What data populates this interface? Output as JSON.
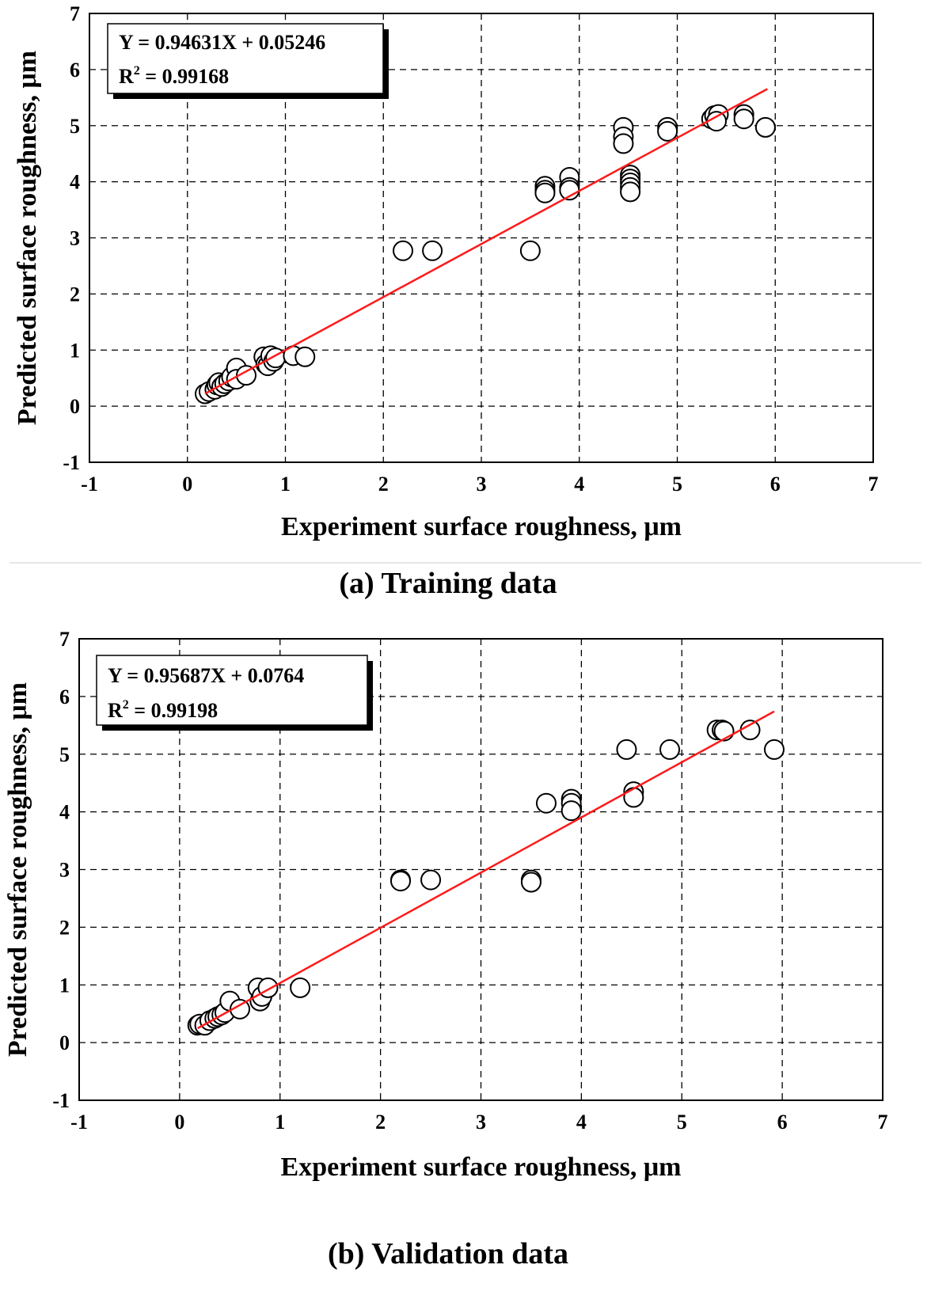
{
  "chart_data": [
    {
      "type": "scatter",
      "caption": "(a) Training data",
      "xlabel": "Experiment surface roughness, μm",
      "ylabel": "Predicted surface roughness, μm",
      "xlim": [
        -1,
        7
      ],
      "ylim": [
        -1,
        7
      ],
      "xticks": [
        "-1",
        "0",
        "1",
        "2",
        "3",
        "4",
        "5",
        "6",
        "7"
      ],
      "yticks": [
        "-1",
        "0",
        "1",
        "2",
        "3",
        "4",
        "5",
        "6",
        "7"
      ],
      "grid": true,
      "equation": "Y =  0.94631X + 0.05246",
      "r2_label": "R",
      "r2_sup": "2",
      "r2_value": " = 0.99168",
      "fit": {
        "slope": 0.94631,
        "intercept": 0.05246,
        "x_range": [
          0.18,
          5.92
        ],
        "color": "#ff1a1a"
      },
      "points": [
        [
          0.18,
          0.22
        ],
        [
          0.22,
          0.26
        ],
        [
          0.28,
          0.3
        ],
        [
          0.3,
          0.38
        ],
        [
          0.32,
          0.42
        ],
        [
          0.35,
          0.35
        ],
        [
          0.38,
          0.4
        ],
        [
          0.42,
          0.45
        ],
        [
          0.45,
          0.52
        ],
        [
          0.5,
          0.68
        ],
        [
          0.5,
          0.48
        ],
        [
          0.6,
          0.55
        ],
        [
          0.78,
          0.88
        ],
        [
          0.8,
          0.75
        ],
        [
          0.82,
          0.72
        ],
        [
          0.85,
          0.9
        ],
        [
          0.88,
          0.8
        ],
        [
          0.9,
          0.86
        ],
        [
          1.08,
          0.9
        ],
        [
          1.2,
          0.88
        ],
        [
          2.2,
          2.77
        ],
        [
          2.5,
          2.77
        ],
        [
          3.5,
          2.77
        ],
        [
          3.65,
          3.92
        ],
        [
          3.65,
          3.85
        ],
        [
          3.65,
          3.8
        ],
        [
          3.9,
          4.08
        ],
        [
          3.9,
          3.9
        ],
        [
          3.9,
          3.85
        ],
        [
          4.45,
          4.97
        ],
        [
          4.45,
          4.8
        ],
        [
          4.45,
          4.68
        ],
        [
          4.52,
          4.12
        ],
        [
          4.52,
          4.05
        ],
        [
          4.52,
          3.98
        ],
        [
          4.52,
          3.9
        ],
        [
          4.52,
          3.82
        ],
        [
          4.9,
          4.97
        ],
        [
          4.9,
          4.9
        ],
        [
          5.35,
          5.12
        ],
        [
          5.38,
          5.18
        ],
        [
          5.42,
          5.2
        ],
        [
          5.4,
          5.08
        ],
        [
          5.68,
          5.2
        ],
        [
          5.68,
          5.12
        ],
        [
          5.9,
          4.97
        ]
      ]
    },
    {
      "type": "scatter",
      "caption": "(b) Validation data",
      "xlabel": "Experiment surface roughness, μm",
      "ylabel": "Predicted surface roughness, μm",
      "xlim": [
        -1,
        7
      ],
      "ylim": [
        -1,
        7
      ],
      "xticks": [
        "-1",
        "0",
        "1",
        "2",
        "3",
        "4",
        "5",
        "6",
        "7"
      ],
      "yticks": [
        "-1",
        "0",
        "1",
        "2",
        "3",
        "4",
        "5",
        "6",
        "7"
      ],
      "grid": true,
      "equation": "Y =  0.95687X + 0.0764",
      "r2_label": "R",
      "r2_sup": "2",
      "r2_value": " = 0.99198",
      "fit": {
        "slope": 0.95687,
        "intercept": 0.0764,
        "x_range": [
          0.18,
          5.92
        ],
        "color": "#ff1a1a"
      },
      "points": [
        [
          0.18,
          0.3
        ],
        [
          0.2,
          0.32
        ],
        [
          0.25,
          0.3
        ],
        [
          0.3,
          0.38
        ],
        [
          0.35,
          0.42
        ],
        [
          0.38,
          0.45
        ],
        [
          0.42,
          0.48
        ],
        [
          0.45,
          0.52
        ],
        [
          0.5,
          0.72
        ],
        [
          0.6,
          0.58
        ],
        [
          0.78,
          0.95
        ],
        [
          0.8,
          0.72
        ],
        [
          0.82,
          0.8
        ],
        [
          0.88,
          0.95
        ],
        [
          1.2,
          0.95
        ],
        [
          2.2,
          2.82
        ],
        [
          2.2,
          2.8
        ],
        [
          2.5,
          2.82
        ],
        [
          3.5,
          2.82
        ],
        [
          3.5,
          2.78
        ],
        [
          3.65,
          4.15
        ],
        [
          3.9,
          4.22
        ],
        [
          3.9,
          4.15
        ],
        [
          3.9,
          4.02
        ],
        [
          4.45,
          5.08
        ],
        [
          4.52,
          4.35
        ],
        [
          4.52,
          4.25
        ],
        [
          4.88,
          5.08
        ],
        [
          5.35,
          5.42
        ],
        [
          5.4,
          5.42
        ],
        [
          5.42,
          5.4
        ],
        [
          5.68,
          5.42
        ],
        [
          5.92,
          5.08
        ]
      ]
    }
  ]
}
